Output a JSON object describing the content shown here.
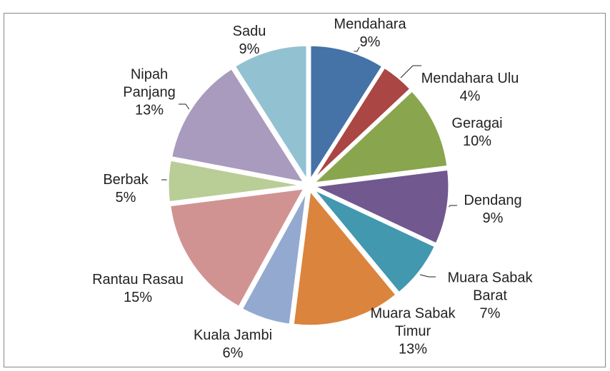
{
  "chart_data": {
    "type": "pie",
    "categories": [
      "Mendahara",
      "Mendahara Ulu",
      "Geragai",
      "Dendang",
      "Muara Sabak Barat",
      "Muara Sabak Timur",
      "Kuala Jambi",
      "Rantau Rasau",
      "Berbak",
      "Nipah Panjang",
      "Sadu"
    ],
    "values": [
      9,
      4,
      10,
      9,
      7,
      13,
      6,
      15,
      5,
      13,
      9
    ],
    "value_labels": [
      "9%",
      "4%",
      "10%",
      "9%",
      "7%",
      "13%",
      "6%",
      "15%",
      "5%",
      "13%",
      "9%"
    ],
    "colors": [
      "#4572a7",
      "#aa4643",
      "#89a54e",
      "#71588f",
      "#4198af",
      "#db843d",
      "#93a9cf",
      "#d19392",
      "#b9cd96",
      "#a99bbd",
      "#92c1d2"
    ]
  }
}
